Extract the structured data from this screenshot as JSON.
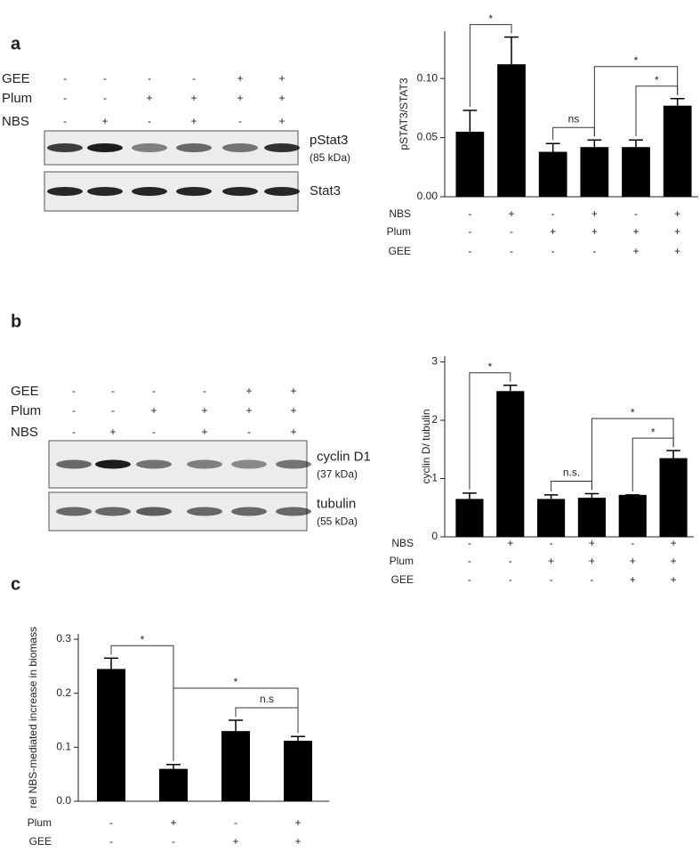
{
  "panels": [
    "a",
    "b",
    "c"
  ],
  "blots": [
    {
      "rows": [
        {
          "name": "GEE",
          "values": [
            "-",
            "-",
            "-",
            "-",
            "+",
            "+"
          ]
        },
        {
          "name": "Plum",
          "values": [
            "-",
            "-",
            "+",
            "+",
            "+",
            "+"
          ]
        },
        {
          "name": "NBS",
          "values": [
            "-",
            "+",
            "-",
            "+",
            "-",
            "+"
          ]
        }
      ],
      "bands": [
        {
          "label": "pStat3",
          "size": "(85 kDa)"
        },
        {
          "label": "Stat3"
        }
      ]
    },
    {
      "rows": [
        {
          "name": "GEE",
          "values": [
            "-",
            "-",
            "-",
            "-",
            "+",
            "+"
          ]
        },
        {
          "name": "Plum",
          "values": [
            "-",
            "-",
            "+",
            "+",
            "+",
            "+"
          ]
        },
        {
          "name": "NBS",
          "values": [
            "-",
            "+",
            "-",
            "+",
            "-",
            "+"
          ]
        }
      ],
      "bands": [
        {
          "label": "cyclin D1",
          "size": "(37 kDa)"
        },
        {
          "label": "tubulin",
          "size": "(55 kDa)"
        }
      ]
    }
  ],
  "chart_data": [
    {
      "type": "bar",
      "y_label": "pSTAT3/STAT3",
      "color": "#000000",
      "categories": [
        null,
        null,
        null,
        null,
        null,
        null
      ],
      "values": [
        0.055,
        0.112,
        0.038,
        0.042,
        0.042,
        0.077
      ],
      "errors": [
        0.018,
        0.023,
        0.007,
        0.006,
        0.006,
        0.006
      ],
      "ylim": [
        0,
        0.14
      ],
      "yticks": [
        {
          "value": 0,
          "label": "0.00"
        },
        {
          "value": 0.05,
          "label": "0.05"
        },
        {
          "value": 0.1,
          "label": "0.10"
        }
      ],
      "conditions": [
        {
          "name": "NBS",
          "values": [
            "-",
            "+",
            "-",
            "+",
            "-",
            "+"
          ]
        },
        {
          "name": "Plum",
          "values": [
            "-",
            "-",
            "+",
            "+",
            "+",
            "+"
          ]
        },
        {
          "name": "GEE",
          "values": [
            "-",
            "-",
            "-",
            "-",
            "+",
            "+"
          ]
        }
      ],
      "annotations": [
        {
          "text": "*",
          "from": 0,
          "to": 1
        },
        {
          "text": "ns",
          "from": 2,
          "to": 3
        },
        {
          "text": "*",
          "from": 4,
          "to": 5
        },
        {
          "text": "*",
          "from": 3,
          "to": 5
        }
      ]
    },
    {
      "type": "bar",
      "y_label": "cyclin D/ tubulin",
      "color": "#000000",
      "categories": [
        null,
        null,
        null,
        null,
        null,
        null
      ],
      "values": [
        0.65,
        2.5,
        0.65,
        0.67,
        0.72,
        1.35
      ],
      "errors": [
        0.1,
        0.1,
        0.07,
        0.07,
        0,
        0.13
      ],
      "ylim": [
        0,
        3.1
      ],
      "yticks": [
        0,
        1,
        2,
        3
      ],
      "conditions": [
        {
          "name": "NBS",
          "values": [
            "-",
            "+",
            "-",
            "+",
            "-",
            "+"
          ]
        },
        {
          "name": "Plum",
          "values": [
            "-",
            "-",
            "+",
            "+",
            "+",
            "+"
          ]
        },
        {
          "name": "GEE",
          "values": [
            "-",
            "-",
            "-",
            "-",
            "+",
            "+"
          ]
        }
      ],
      "annotations": [
        {
          "text": "*",
          "from": 0,
          "to": 1
        },
        {
          "text": "n.s.",
          "from": 2,
          "to": 3
        },
        {
          "text": "*",
          "from": 4,
          "to": 5
        },
        {
          "text": "*",
          "from": 3,
          "to": 5
        }
      ]
    },
    {
      "type": "bar",
      "y_label": "rel NBS-mediated increase in biomass",
      "color": "#000000",
      "categories": [
        null,
        null,
        null,
        null
      ],
      "values": [
        0.245,
        0.06,
        0.13,
        0.112
      ],
      "errors": [
        0.02,
        0.008,
        0.02,
        0.008
      ],
      "ylim": [
        0,
        0.31
      ],
      "yticks": [
        {
          "value": 0,
          "label": "0.0"
        },
        {
          "value": 0.1,
          "label": "0.1"
        },
        {
          "value": 0.2,
          "label": "0.2"
        },
        {
          "value": 0.3,
          "label": "0.3"
        }
      ],
      "conditions": [
        {
          "name": "Plum",
          "values": [
            "-",
            "+",
            "-",
            "+"
          ]
        },
        {
          "name": "GEE",
          "values": [
            "-",
            "-",
            "+",
            "+"
          ]
        }
      ],
      "annotations": [
        {
          "text": "*",
          "from": 0,
          "to": 1
        },
        {
          "text": "n.s",
          "from": 2,
          "to": 3
        },
        {
          "text": "*",
          "from": 1,
          "to": 3
        }
      ]
    }
  ]
}
